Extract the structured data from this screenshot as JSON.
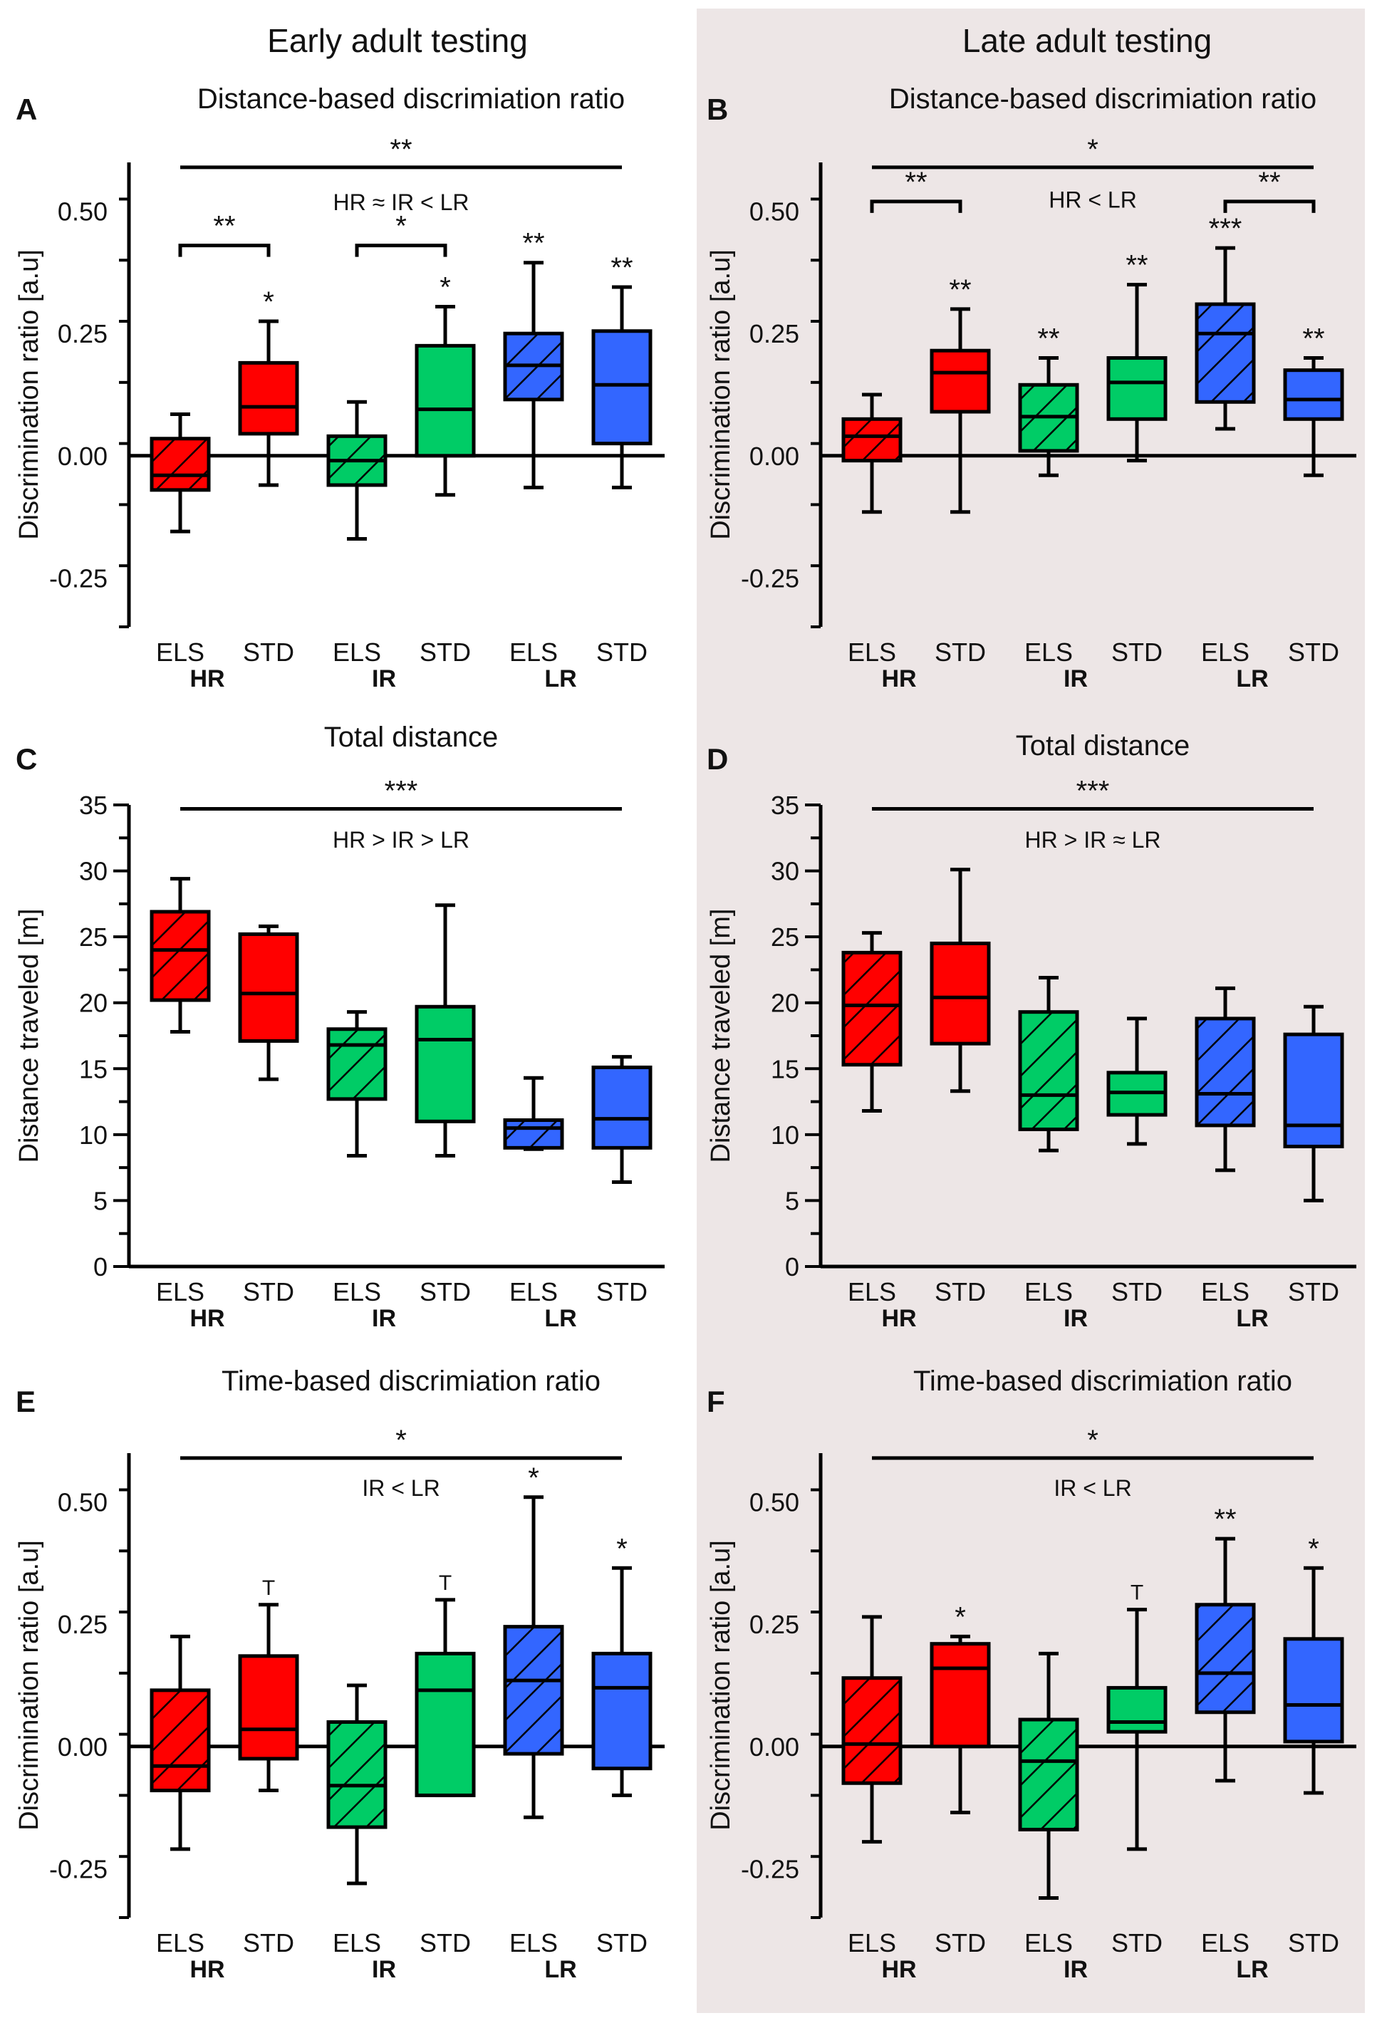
{
  "headers": {
    "early": "Early adult testing",
    "late": "Late adult testing"
  },
  "colors": {
    "HR": "#ff0000",
    "IR": "#00cc66",
    "LR": "#3366ff",
    "axis": "#000000",
    "panel_bg_late": "#ede6e6"
  },
  "chart_data": [
    {
      "id": "A",
      "type": "box",
      "column": "early",
      "title": "Distance-based discrimiation ratio",
      "ylabel": "Discrimination ratio [a.u]",
      "ylim": [
        -0.35,
        0.6
      ],
      "ytick_values": [
        -0.25,
        0,
        0.25,
        0.5
      ],
      "ytick_labels": [
        "-0.25",
        "0.00",
        "0.25",
        "0.50"
      ],
      "zero_line": true,
      "categories": [
        "ELS",
        "STD",
        "ELS",
        "STD",
        "ELS",
        "STD"
      ],
      "groups": [
        "HR",
        "IR",
        "LR"
      ],
      "series": [
        {
          "group": "HR",
          "condition": "ELS",
          "hatched": true,
          "min": -0.155,
          "q1": -0.07,
          "median": -0.04,
          "q3": 0.035,
          "max": 0.085,
          "sig": ""
        },
        {
          "group": "HR",
          "condition": "STD",
          "hatched": false,
          "min": -0.06,
          "q1": 0.045,
          "median": 0.1,
          "q3": 0.19,
          "max": 0.275,
          "sig": "*"
        },
        {
          "group": "IR",
          "condition": "ELS",
          "hatched": true,
          "min": -0.17,
          "q1": -0.06,
          "median": -0.01,
          "q3": 0.04,
          "max": 0.11,
          "sig": ""
        },
        {
          "group": "IR",
          "condition": "STD",
          "hatched": false,
          "min": -0.08,
          "q1": 0.0,
          "median": 0.095,
          "q3": 0.225,
          "max": 0.305,
          "sig": "*"
        },
        {
          "group": "LR",
          "condition": "ELS",
          "hatched": true,
          "min": -0.065,
          "q1": 0.115,
          "median": 0.185,
          "q3": 0.25,
          "max": 0.395,
          "sig": "**"
        },
        {
          "group": "LR",
          "condition": "STD",
          "hatched": false,
          "min": -0.065,
          "q1": 0.025,
          "median": 0.145,
          "q3": 0.255,
          "max": 0.345,
          "sig": "**"
        }
      ],
      "annotations": [
        {
          "type": "line",
          "from": 1,
          "to": 6,
          "y": 0.59,
          "label": "**",
          "ends": false
        },
        {
          "type": "text",
          "at": 3.5,
          "y": 0.52,
          "label": "HR ≈ IR < LR"
        },
        {
          "type": "bracket",
          "from": 1,
          "to": 2,
          "y": 0.43,
          "label": "**"
        },
        {
          "type": "bracket",
          "from": 3,
          "to": 4,
          "y": 0.43,
          "label": "*"
        }
      ]
    },
    {
      "id": "B",
      "type": "box",
      "column": "late",
      "title": "Distance-based discrimiation ratio",
      "ylabel": "Discrimination ratio [a.u]",
      "ylim": [
        -0.35,
        0.6
      ],
      "ytick_values": [
        -0.25,
        0,
        0.25,
        0.5
      ],
      "ytick_labels": [
        "-0.25",
        "0.00",
        "0.25",
        "0.50"
      ],
      "zero_line": true,
      "categories": [
        "ELS",
        "STD",
        "ELS",
        "STD",
        "ELS",
        "STD"
      ],
      "groups": [
        "HR",
        "IR",
        "LR"
      ],
      "series": [
        {
          "group": "HR",
          "condition": "ELS",
          "hatched": true,
          "min": -0.115,
          "q1": -0.01,
          "median": 0.04,
          "q3": 0.075,
          "max": 0.125,
          "sig": ""
        },
        {
          "group": "HR",
          "condition": "STD",
          "hatched": false,
          "min": -0.115,
          "q1": 0.09,
          "median": 0.17,
          "q3": 0.215,
          "max": 0.3,
          "sig": "**"
        },
        {
          "group": "IR",
          "condition": "ELS",
          "hatched": true,
          "min": -0.04,
          "q1": 0.01,
          "median": 0.08,
          "q3": 0.145,
          "max": 0.2,
          "sig": "**"
        },
        {
          "group": "IR",
          "condition": "STD",
          "hatched": false,
          "min": -0.01,
          "q1": 0.075,
          "median": 0.15,
          "q3": 0.2,
          "max": 0.35,
          "sig": "**"
        },
        {
          "group": "LR",
          "condition": "ELS",
          "hatched": true,
          "min": 0.055,
          "q1": 0.11,
          "median": 0.25,
          "q3": 0.31,
          "max": 0.425,
          "sig": "***"
        },
        {
          "group": "LR",
          "condition": "STD",
          "hatched": false,
          "min": -0.04,
          "q1": 0.075,
          "median": 0.115,
          "q3": 0.175,
          "max": 0.2,
          "sig": "**"
        }
      ],
      "annotations": [
        {
          "type": "line",
          "from": 1,
          "to": 6,
          "y": 0.59,
          "label": "*",
          "ends": false
        },
        {
          "type": "text",
          "at": 3.5,
          "y": 0.525,
          "label": "HR < LR"
        },
        {
          "type": "bracket",
          "from": 1,
          "to": 2,
          "y": 0.52,
          "label": "**"
        },
        {
          "type": "bracket",
          "from": 5,
          "to": 6,
          "y": 0.52,
          "label": "**"
        }
      ]
    },
    {
      "id": "C",
      "type": "box",
      "column": "early",
      "title": "Total distance",
      "ylabel": "Distance traveled [m]",
      "ylim": [
        0,
        35
      ],
      "ytick_values": [
        0,
        5,
        10,
        15,
        20,
        25,
        30,
        35
      ],
      "ytick_labels": [
        "0",
        "5",
        "10",
        "15",
        "20",
        "25",
        "30",
        "35"
      ],
      "zero_line": false,
      "categories": [
        "ELS",
        "STD",
        "ELS",
        "STD",
        "ELS",
        "STD"
      ],
      "groups": [
        "HR",
        "IR",
        "LR"
      ],
      "series": [
        {
          "group": "HR",
          "condition": "ELS",
          "hatched": true,
          "min": 17.8,
          "q1": 20.2,
          "median": 24.0,
          "q3": 26.9,
          "max": 29.4,
          "sig": ""
        },
        {
          "group": "HR",
          "condition": "STD",
          "hatched": false,
          "min": 14.2,
          "q1": 17.1,
          "median": 20.7,
          "q3": 25.2,
          "max": 25.8,
          "sig": ""
        },
        {
          "group": "IR",
          "condition": "ELS",
          "hatched": true,
          "min": 8.4,
          "q1": 12.7,
          "median": 16.8,
          "q3": 18.0,
          "max": 19.3,
          "sig": ""
        },
        {
          "group": "IR",
          "condition": "STD",
          "hatched": false,
          "min": 8.4,
          "q1": 11.0,
          "median": 17.2,
          "q3": 19.7,
          "max": 27.4,
          "sig": ""
        },
        {
          "group": "LR",
          "condition": "ELS",
          "hatched": true,
          "min": 8.9,
          "q1": 9.0,
          "median": 10.5,
          "q3": 11.1,
          "max": 14.3,
          "sig": ""
        },
        {
          "group": "LR",
          "condition": "STD",
          "hatched": false,
          "min": 6.4,
          "q1": 9.0,
          "median": 11.2,
          "q3": 15.1,
          "max": 15.9,
          "sig": ""
        }
      ],
      "annotations": [
        {
          "type": "line",
          "from": 1,
          "to": 6,
          "y": 34.7,
          "label": "***",
          "ends": false
        },
        {
          "type": "text",
          "at": 3.5,
          "y": 32.4,
          "label": "HR > IR > LR"
        }
      ]
    },
    {
      "id": "D",
      "type": "box",
      "column": "late",
      "title": "Total distance",
      "ylabel": "Distance traveled [m]",
      "ylim": [
        0,
        35
      ],
      "ytick_values": [
        0,
        5,
        10,
        15,
        20,
        25,
        30,
        35
      ],
      "ytick_labels": [
        "0",
        "5",
        "10",
        "15",
        "20",
        "25",
        "30",
        "35"
      ],
      "zero_line": false,
      "categories": [
        "ELS",
        "STD",
        "ELS",
        "STD",
        "ELS",
        "STD"
      ],
      "groups": [
        "HR",
        "IR",
        "LR"
      ],
      "series": [
        {
          "group": "HR",
          "condition": "ELS",
          "hatched": true,
          "min": 11.8,
          "q1": 15.3,
          "median": 19.8,
          "q3": 23.8,
          "max": 25.3,
          "sig": ""
        },
        {
          "group": "HR",
          "condition": "STD",
          "hatched": false,
          "min": 13.3,
          "q1": 16.9,
          "median": 20.4,
          "q3": 24.5,
          "max": 30.1,
          "sig": ""
        },
        {
          "group": "IR",
          "condition": "ELS",
          "hatched": true,
          "min": 8.8,
          "q1": 10.4,
          "median": 13.0,
          "q3": 19.3,
          "max": 21.9,
          "sig": ""
        },
        {
          "group": "IR",
          "condition": "STD",
          "hatched": false,
          "min": 9.3,
          "q1": 11.5,
          "median": 13.2,
          "q3": 14.7,
          "max": 18.8,
          "sig": ""
        },
        {
          "group": "LR",
          "condition": "ELS",
          "hatched": true,
          "min": 7.3,
          "q1": 10.7,
          "median": 13.1,
          "q3": 18.8,
          "max": 21.1,
          "sig": ""
        },
        {
          "group": "LR",
          "condition": "STD",
          "hatched": false,
          "min": 5.0,
          "q1": 9.1,
          "median": 10.7,
          "q3": 17.6,
          "max": 19.7,
          "sig": ""
        }
      ],
      "annotations": [
        {
          "type": "line",
          "from": 1,
          "to": 6,
          "y": 34.7,
          "label": "***",
          "ends": false
        },
        {
          "type": "text",
          "at": 3.5,
          "y": 32.4,
          "label": "HR > IR ≈ LR"
        }
      ]
    },
    {
      "id": "E",
      "type": "box",
      "column": "early",
      "title": "Time-based discrimiation ratio",
      "ylabel": "Discrimination ratio [a.u]",
      "ylim": [
        -0.35,
        0.6
      ],
      "ytick_values": [
        -0.25,
        0,
        0.25,
        0.5
      ],
      "ytick_labels": [
        "-0.25",
        "0.00",
        "0.25",
        "0.50"
      ],
      "zero_line": true,
      "categories": [
        "ELS",
        "STD",
        "ELS",
        "STD",
        "ELS",
        "STD"
      ],
      "groups": [
        "HR",
        "IR",
        "LR"
      ],
      "series": [
        {
          "group": "HR",
          "condition": "ELS",
          "hatched": true,
          "min": -0.21,
          "q1": -0.09,
          "median": -0.04,
          "q3": 0.115,
          "max": 0.225,
          "sig": ""
        },
        {
          "group": "HR",
          "condition": "STD",
          "hatched": false,
          "min": -0.09,
          "q1": -0.025,
          "median": 0.035,
          "q3": 0.185,
          "max": 0.29,
          "sig": "T"
        },
        {
          "group": "IR",
          "condition": "ELS",
          "hatched": true,
          "min": -0.28,
          "q1": -0.165,
          "median": -0.08,
          "q3": 0.05,
          "max": 0.125,
          "sig": ""
        },
        {
          "group": "IR",
          "condition": "STD",
          "hatched": false,
          "min": -0.1,
          "q1": -0.1,
          "median": 0.115,
          "q3": 0.19,
          "max": 0.3,
          "sig": "T"
        },
        {
          "group": "LR",
          "condition": "ELS",
          "hatched": true,
          "min": -0.145,
          "q1": -0.015,
          "median": 0.135,
          "q3": 0.245,
          "max": 0.51,
          "sig": "*"
        },
        {
          "group": "LR",
          "condition": "STD",
          "hatched": false,
          "min": -0.1,
          "q1": -0.045,
          "median": 0.12,
          "q3": 0.19,
          "max": 0.365,
          "sig": "*"
        }
      ],
      "annotations": [
        {
          "type": "line",
          "from": 1,
          "to": 6,
          "y": 0.59,
          "label": "*",
          "ends": false
        },
        {
          "type": "text",
          "at": 3.5,
          "y": 0.53,
          "label": "IR < LR"
        }
      ]
    },
    {
      "id": "F",
      "type": "box",
      "column": "late",
      "title": "Time-based discrimiation ratio",
      "ylabel": "Discrimination ratio [a.u]",
      "ylim": [
        -0.35,
        0.6
      ],
      "ytick_values": [
        -0.25,
        0,
        0.25,
        0.5
      ],
      "ytick_labels": [
        "-0.25",
        "0.00",
        "0.25",
        "0.50"
      ],
      "zero_line": true,
      "categories": [
        "ELS",
        "STD",
        "ELS",
        "STD",
        "ELS",
        "STD"
      ],
      "groups": [
        "HR",
        "IR",
        "LR"
      ],
      "series": [
        {
          "group": "HR",
          "condition": "ELS",
          "hatched": true,
          "min": -0.195,
          "q1": -0.075,
          "median": 0.005,
          "q3": 0.14,
          "max": 0.265,
          "sig": ""
        },
        {
          "group": "HR",
          "condition": "STD",
          "hatched": false,
          "min": -0.135,
          "q1": 0.0,
          "median": 0.16,
          "q3": 0.21,
          "max": 0.225,
          "sig": "*"
        },
        {
          "group": "IR",
          "condition": "ELS",
          "hatched": true,
          "min": -0.31,
          "q1": -0.17,
          "median": -0.03,
          "q3": 0.055,
          "max": 0.19,
          "sig": ""
        },
        {
          "group": "IR",
          "condition": "STD",
          "hatched": false,
          "min": -0.21,
          "q1": 0.03,
          "median": 0.05,
          "q3": 0.12,
          "max": 0.28,
          "sig": "T"
        },
        {
          "group": "LR",
          "condition": "ELS",
          "hatched": true,
          "min": -0.07,
          "q1": 0.07,
          "median": 0.15,
          "q3": 0.29,
          "max": 0.425,
          "sig": "**"
        },
        {
          "group": "LR",
          "condition": "STD",
          "hatched": false,
          "min": -0.095,
          "q1": 0.01,
          "median": 0.085,
          "q3": 0.22,
          "max": 0.365,
          "sig": "*"
        }
      ],
      "annotations": [
        {
          "type": "line",
          "from": 1,
          "to": 6,
          "y": 0.59,
          "label": "*",
          "ends": false
        },
        {
          "type": "text",
          "at": 3.5,
          "y": 0.53,
          "label": "IR < LR"
        }
      ]
    }
  ]
}
